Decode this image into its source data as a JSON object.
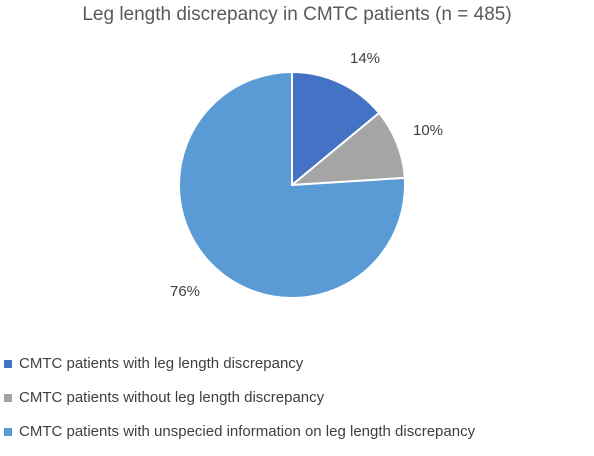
{
  "chart_data": {
    "type": "pie",
    "title": "Leg length discrepancy in CMTC patients (n = 485)",
    "slices": [
      {
        "label": "CMTC patients with leg length discrepancy",
        "value": 14,
        "data_label": "14%",
        "color": "#4472c4"
      },
      {
        "label": "CMTC patients without leg length discrepancy",
        "value": 10,
        "data_label": "10%",
        "color": "#a5a5a5"
      },
      {
        "label": "CMTC patients with unspecied information on leg length discrepancy",
        "value": 76,
        "data_label": "76%",
        "color": "#5b9bd5"
      }
    ],
    "legend_position": "bottom-left"
  }
}
